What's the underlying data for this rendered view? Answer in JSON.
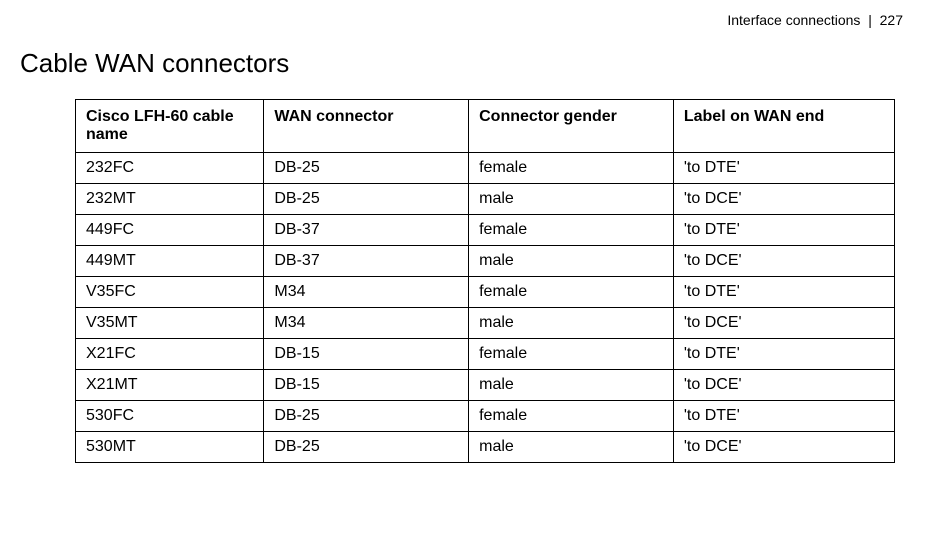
{
  "header": {
    "section_label": "Interface connections",
    "separator": "|",
    "page_number": "227"
  },
  "title": "Cable WAN connectors",
  "table": {
    "columns": [
      "Cisco LFH-60 cable name",
      "WAN connector",
      "Connector gender",
      "Label on WAN end"
    ],
    "rows": [
      [
        "232FC",
        "DB-25",
        "female",
        "'to DTE'"
      ],
      [
        "232MT",
        "DB-25",
        "male",
        "'to DCE'"
      ],
      [
        "449FC",
        "DB-37",
        "female",
        "'to DTE'"
      ],
      [
        "449MT",
        "DB-37",
        "male",
        "'to DCE'"
      ],
      [
        "V35FC",
        "M34",
        "female",
        "'to DTE'"
      ],
      [
        "V35MT",
        "M34",
        "male",
        "'to DCE'"
      ],
      [
        "X21FC",
        "DB-15",
        "female",
        "'to DTE'"
      ],
      [
        "X21MT",
        "DB-15",
        "male",
        "'to DCE'"
      ],
      [
        "530FC",
        "DB-25",
        "female",
        "'to DTE'"
      ],
      [
        "530MT",
        "DB-25",
        "male",
        "'to DCE'"
      ]
    ]
  }
}
